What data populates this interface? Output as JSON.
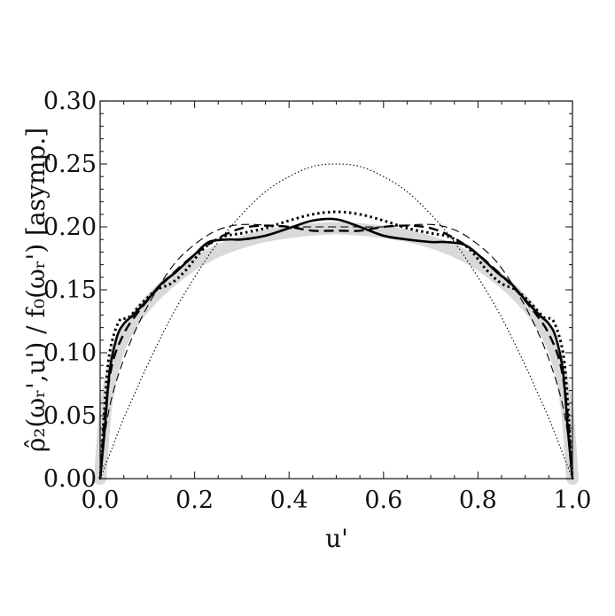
{
  "chart_data": {
    "type": "line",
    "xlabel": "u'",
    "ylabel": "ρ̂₂(ωᵣ',u') / f₀(ωᵣ') [asymp.]",
    "xlim": [
      0.0,
      1.0
    ],
    "ylim": [
      0.0,
      0.3
    ],
    "xticks": [
      "0.0",
      "0.2",
      "0.4",
      "0.6",
      "0.8",
      "1.0"
    ],
    "yticks": [
      "0.00",
      "0.05",
      "0.10",
      "0.15",
      "0.20",
      "0.25",
      "0.30"
    ],
    "grid": false,
    "series": [
      {
        "style": "gray-band",
        "color": "#d9d9d9",
        "x": [
          0.0,
          0.01,
          0.02,
          0.03,
          0.05,
          0.08,
          0.12,
          0.16,
          0.2,
          0.25,
          0.3,
          0.35,
          0.4,
          0.45,
          0.5,
          0.55,
          0.6,
          0.65,
          0.7,
          0.75,
          0.8,
          0.84,
          0.88,
          0.92,
          0.95,
          0.97,
          0.98,
          0.99,
          1.0
        ],
        "values": [
          0.0,
          0.05,
          0.075,
          0.092,
          0.112,
          0.13,
          0.147,
          0.16,
          0.171,
          0.181,
          0.188,
          0.193,
          0.196,
          0.198,
          0.199,
          0.198,
          0.196,
          0.193,
          0.188,
          0.181,
          0.171,
          0.16,
          0.147,
          0.13,
          0.112,
          0.092,
          0.075,
          0.05,
          0.0
        ]
      },
      {
        "style": "solid-thick",
        "color": "#000000",
        "x": [
          0.0,
          0.01,
          0.02,
          0.035,
          0.05,
          0.07,
          0.1,
          0.13,
          0.16,
          0.2,
          0.23,
          0.27,
          0.3,
          0.35,
          0.4,
          0.45,
          0.5,
          0.55,
          0.6,
          0.65,
          0.7,
          0.73,
          0.77,
          0.8,
          0.84,
          0.87,
          0.9,
          0.93,
          0.95,
          0.965,
          0.98,
          0.99,
          1.0
        ],
        "values": [
          0.0,
          0.04,
          0.085,
          0.112,
          0.123,
          0.13,
          0.142,
          0.155,
          0.164,
          0.178,
          0.188,
          0.19,
          0.19,
          0.193,
          0.199,
          0.205,
          0.206,
          0.2,
          0.193,
          0.19,
          0.188,
          0.188,
          0.186,
          0.178,
          0.164,
          0.155,
          0.142,
          0.13,
          0.123,
          0.112,
          0.085,
          0.04,
          0.0
        ]
      },
      {
        "style": "dashed-thick",
        "color": "#000000",
        "x": [
          0.0,
          0.01,
          0.025,
          0.05,
          0.08,
          0.12,
          0.16,
          0.2,
          0.25,
          0.3,
          0.35,
          0.4,
          0.45,
          0.5,
          0.55,
          0.6,
          0.65,
          0.7,
          0.75,
          0.8,
          0.84,
          0.88,
          0.92,
          0.95,
          0.975,
          0.99,
          1.0
        ],
        "values": [
          0.0,
          0.05,
          0.09,
          0.115,
          0.132,
          0.15,
          0.165,
          0.178,
          0.191,
          0.199,
          0.201,
          0.2,
          0.197,
          0.197,
          0.197,
          0.2,
          0.201,
          0.199,
          0.191,
          0.178,
          0.165,
          0.15,
          0.132,
          0.115,
          0.09,
          0.05,
          0.0
        ]
      },
      {
        "style": "dotted-thick",
        "color": "#000000",
        "x": [
          0.0,
          0.01,
          0.02,
          0.04,
          0.06,
          0.09,
          0.12,
          0.15,
          0.18,
          0.22,
          0.26,
          0.3,
          0.35,
          0.4,
          0.45,
          0.5,
          0.55,
          0.6,
          0.65,
          0.7,
          0.74,
          0.78,
          0.82,
          0.85,
          0.88,
          0.91,
          0.94,
          0.96,
          0.98,
          0.99,
          1.0
        ],
        "values": [
          0.0,
          0.06,
          0.1,
          0.125,
          0.128,
          0.14,
          0.15,
          0.155,
          0.165,
          0.183,
          0.192,
          0.195,
          0.199,
          0.205,
          0.21,
          0.212,
          0.21,
          0.205,
          0.199,
          0.195,
          0.192,
          0.183,
          0.165,
          0.155,
          0.15,
          0.14,
          0.128,
          0.125,
          0.1,
          0.06,
          0.0
        ]
      },
      {
        "style": "dashed-thin",
        "color": "#000000",
        "x": [
          0.0,
          0.01,
          0.025,
          0.05,
          0.08,
          0.12,
          0.16,
          0.2,
          0.24,
          0.28,
          0.32,
          0.36,
          0.4,
          0.45,
          0.5,
          0.55,
          0.6,
          0.64,
          0.68,
          0.72,
          0.76,
          0.8,
          0.84,
          0.88,
          0.92,
          0.95,
          0.975,
          0.99,
          1.0
        ],
        "values": [
          0.0,
          0.035,
          0.065,
          0.095,
          0.122,
          0.15,
          0.172,
          0.186,
          0.196,
          0.201,
          0.202,
          0.201,
          0.2,
          0.2,
          0.2,
          0.2,
          0.2,
          0.201,
          0.202,
          0.201,
          0.196,
          0.186,
          0.172,
          0.15,
          0.122,
          0.095,
          0.065,
          0.035,
          0.0
        ]
      },
      {
        "style": "dotted-thin",
        "color": "#000000",
        "x": [
          0.0,
          0.025,
          0.05,
          0.075,
          0.1,
          0.15,
          0.2,
          0.25,
          0.3,
          0.35,
          0.4,
          0.45,
          0.5,
          0.55,
          0.6,
          0.65,
          0.7,
          0.75,
          0.8,
          0.85,
          0.9,
          0.925,
          0.95,
          0.975,
          1.0
        ],
        "values": [
          0.0,
          0.024,
          0.048,
          0.069,
          0.09,
          0.128,
          0.16,
          0.188,
          0.21,
          0.228,
          0.24,
          0.248,
          0.25,
          0.248,
          0.24,
          0.228,
          0.21,
          0.188,
          0.16,
          0.128,
          0.09,
          0.069,
          0.048,
          0.024,
          0.0
        ]
      }
    ]
  }
}
